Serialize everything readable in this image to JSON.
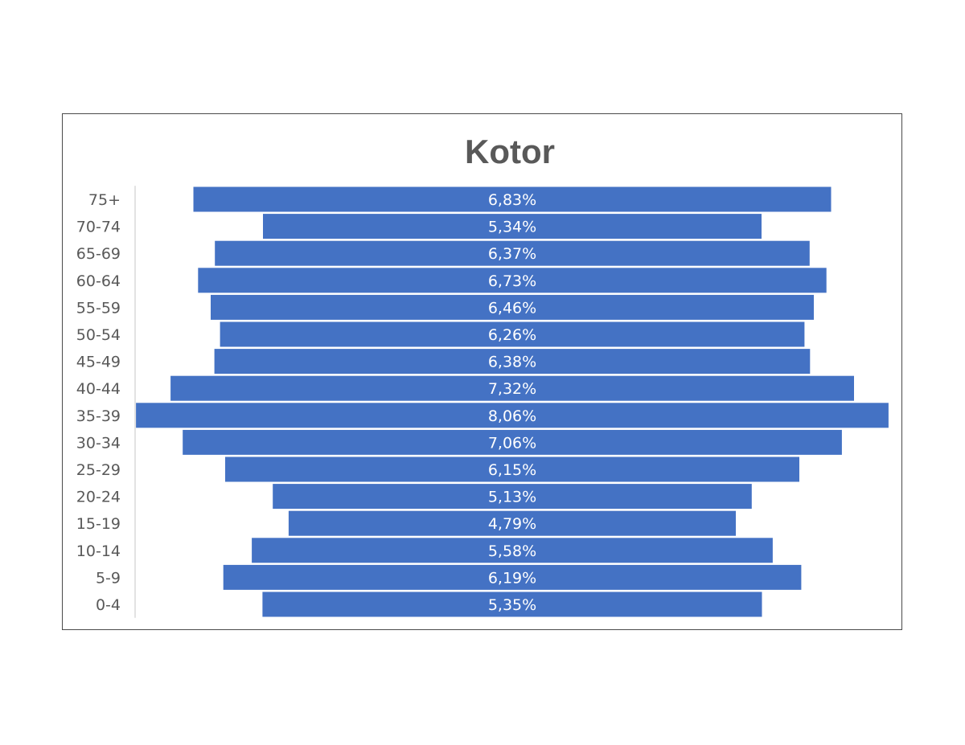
{
  "chart_data": {
    "type": "bar",
    "orientation": "horizontal-centered",
    "title": "Kotor",
    "categories": [
      "75+",
      "70-74",
      "65-69",
      "60-64",
      "55-59",
      "50-54",
      "45-49",
      "40-44",
      "35-39",
      "30-34",
      "25-29",
      "20-24",
      "15-19",
      "10-14",
      "5-9",
      "0-4"
    ],
    "values": [
      6.83,
      5.34,
      6.37,
      6.73,
      6.46,
      6.26,
      6.38,
      7.32,
      8.06,
      7.06,
      6.15,
      5.13,
      4.79,
      5.58,
      6.19,
      5.35
    ],
    "value_labels": [
      "6,83%",
      "5,34%",
      "6,37%",
      "6,73%",
      "6,46%",
      "6,26%",
      "6,38%",
      "7,32%",
      "8,06%",
      "7,06%",
      "6,15%",
      "5,13%",
      "4,79%",
      "5,58%",
      "6,19%",
      "5,35%"
    ],
    "xlabel": "",
    "ylabel": "",
    "legend": "none",
    "grid": false,
    "colors": {
      "bar": "#4472C4",
      "bar_label": "#ffffff",
      "axis_label": "#595959",
      "axis_line": "#d9d9d9",
      "frame": "#4a4a4a"
    }
  }
}
